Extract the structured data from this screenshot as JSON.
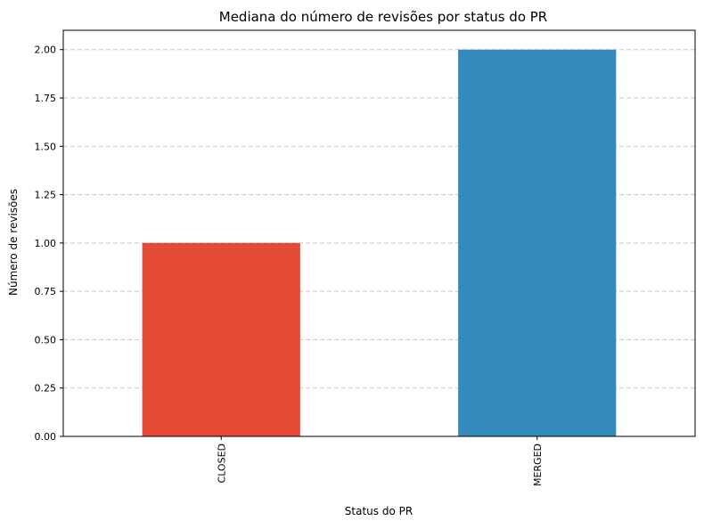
{
  "chart_data": {
    "type": "bar",
    "title": "Mediana do número de revisões por status do PR",
    "xlabel": "Status do PR",
    "ylabel": "Número de revisões",
    "categories": [
      "CLOSED",
      "MERGED"
    ],
    "values": [
      1.0,
      2.0
    ],
    "bar_colors": [
      "#e24a33",
      "#348abd"
    ],
    "ylim": [
      0,
      2.1
    ],
    "yticks": [
      0.0,
      0.25,
      0.5,
      0.75,
      1.0,
      1.25,
      1.5,
      1.75,
      2.0
    ],
    "ytick_labels": [
      "0.00",
      "0.25",
      "0.50",
      "0.75",
      "1.00",
      "1.25",
      "1.50",
      "1.75",
      "2.00"
    ],
    "grid": "horizontal-dashed",
    "legend": "none"
  }
}
